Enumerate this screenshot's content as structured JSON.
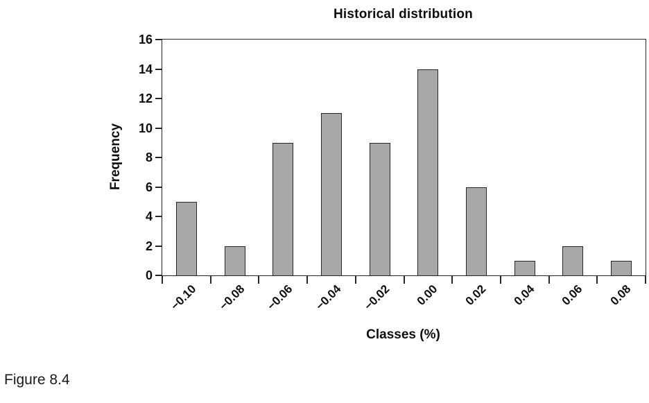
{
  "chart_data": {
    "type": "bar",
    "title": "Historical distribution",
    "xlabel": "Classes (%)",
    "ylabel": "Frequency",
    "categories": [
      "−0.10",
      "−0.08",
      "−0.06",
      "−0.04",
      "−0.02",
      "0.00",
      "0.02",
      "0.04",
      "0.06",
      "0.08"
    ],
    "values": [
      5,
      2,
      9,
      11,
      9,
      14,
      6,
      1,
      2,
      1
    ],
    "ylim": [
      0,
      16
    ],
    "yticks": [
      0,
      2,
      4,
      6,
      8,
      10,
      12,
      14,
      16
    ],
    "grid": false,
    "legend_position": "none",
    "bar_fill_color": "#a8a8a8",
    "bar_border_color": "#262626",
    "axis_color": "#262626"
  },
  "caption": "Figure 8.4"
}
